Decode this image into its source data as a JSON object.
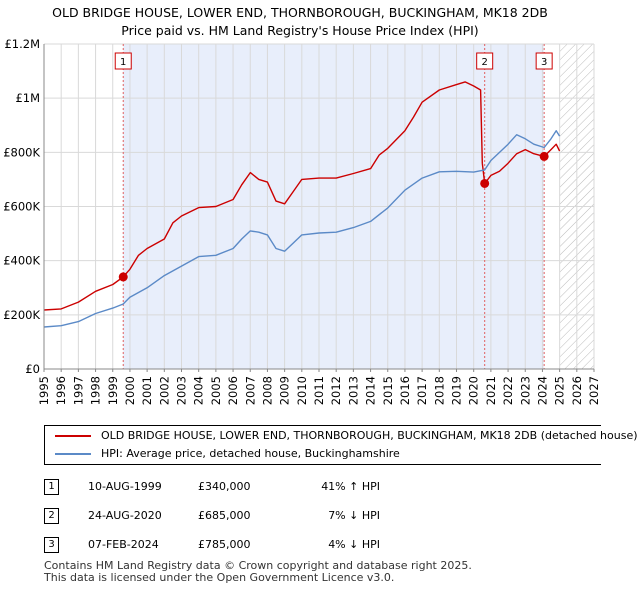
{
  "title_line1": "OLD BRIDGE HOUSE, LOWER END, THORNBOROUGH, BUCKINGHAM, MK18 2DB",
  "title_line2": "Price paid vs. HM Land Registry's House Price Index (HPI)",
  "colors": {
    "property": "#cc0000",
    "hpi": "#5b8ac7",
    "shade": "#e8eefb",
    "marker_line": "#e06060"
  },
  "chart_data": {
    "type": "line",
    "x_axis": {
      "min": 1995,
      "max": 2027,
      "ticks": [
        "1995",
        "1996",
        "1997",
        "1998",
        "1999",
        "2000",
        "2001",
        "2002",
        "2003",
        "2004",
        "2005",
        "2006",
        "2007",
        "2008",
        "2009",
        "2010",
        "2011",
        "2012",
        "2013",
        "2014",
        "2015",
        "2016",
        "2017",
        "2018",
        "2019",
        "2020",
        "2021",
        "2022",
        "2023",
        "2024",
        "2025",
        "2026",
        "2027"
      ]
    },
    "y_axis": {
      "min": 0,
      "max": 1200000,
      "ticks": [
        {
          "value": 0,
          "label": "£0"
        },
        {
          "value": 200000,
          "label": "£200K"
        },
        {
          "value": 400000,
          "label": "£400K"
        },
        {
          "value": 600000,
          "label": "£600K"
        },
        {
          "value": 800000,
          "label": "£800K"
        },
        {
          "value": 1000000,
          "label": "£1M"
        },
        {
          "value": 1200000,
          "label": "£1.2M"
        }
      ]
    },
    "shaded_range": [
      1999.61,
      2024.1
    ],
    "future_hatch_from": 2025.0,
    "series": [
      {
        "name": "OLD BRIDGE HOUSE, LOWER END, THORNBOROUGH, BUCKINGHAM, MK18 2DB (detached house)",
        "color": "#cc0000",
        "points": [
          [
            1995.0,
            218000
          ],
          [
            1996.0,
            222000
          ],
          [
            1997.0,
            247000
          ],
          [
            1998.0,
            287000
          ],
          [
            1999.0,
            312000
          ],
          [
            1999.61,
            340000
          ],
          [
            2000.0,
            368000
          ],
          [
            2000.5,
            420000
          ],
          [
            2001.0,
            445000
          ],
          [
            2002.0,
            480000
          ],
          [
            2002.5,
            540000
          ],
          [
            2003.0,
            565000
          ],
          [
            2004.0,
            596000
          ],
          [
            2005.0,
            600000
          ],
          [
            2006.0,
            626000
          ],
          [
            2006.5,
            680000
          ],
          [
            2007.0,
            725000
          ],
          [
            2007.5,
            700000
          ],
          [
            2008.0,
            690000
          ],
          [
            2008.5,
            620000
          ],
          [
            2009.0,
            610000
          ],
          [
            2009.5,
            655000
          ],
          [
            2010.0,
            700000
          ],
          [
            2011.0,
            705000
          ],
          [
            2012.0,
            705000
          ],
          [
            2013.0,
            722000
          ],
          [
            2014.0,
            740000
          ],
          [
            2014.5,
            790000
          ],
          [
            2015.0,
            815000
          ],
          [
            2016.0,
            880000
          ],
          [
            2016.5,
            930000
          ],
          [
            2017.0,
            985000
          ],
          [
            2018.0,
            1030000
          ],
          [
            2019.0,
            1050000
          ],
          [
            2019.5,
            1060000
          ],
          [
            2020.0,
            1045000
          ],
          [
            2020.4,
            1030000
          ],
          [
            2020.5,
            760000
          ],
          [
            2020.64,
            685000
          ],
          [
            2021.0,
            715000
          ],
          [
            2021.5,
            730000
          ],
          [
            2022.0,
            760000
          ],
          [
            2022.5,
            795000
          ],
          [
            2023.0,
            810000
          ],
          [
            2023.5,
            795000
          ],
          [
            2024.1,
            785000
          ],
          [
            2024.5,
            810000
          ],
          [
            2024.8,
            830000
          ],
          [
            2025.0,
            805000
          ]
        ]
      },
      {
        "name": "HPI: Average price, detached house, Buckinghamshire",
        "color": "#5b8ac7",
        "points": [
          [
            1995.0,
            155000
          ],
          [
            1996.0,
            160000
          ],
          [
            1997.0,
            175000
          ],
          [
            1998.0,
            205000
          ],
          [
            1999.0,
            225000
          ],
          [
            1999.61,
            240000
          ],
          [
            2000.0,
            265000
          ],
          [
            2001.0,
            300000
          ],
          [
            2002.0,
            345000
          ],
          [
            2003.0,
            380000
          ],
          [
            2004.0,
            415000
          ],
          [
            2005.0,
            420000
          ],
          [
            2006.0,
            445000
          ],
          [
            2006.5,
            480000
          ],
          [
            2007.0,
            510000
          ],
          [
            2007.5,
            505000
          ],
          [
            2008.0,
            495000
          ],
          [
            2008.5,
            445000
          ],
          [
            2009.0,
            435000
          ],
          [
            2009.5,
            465000
          ],
          [
            2010.0,
            495000
          ],
          [
            2011.0,
            502000
          ],
          [
            2012.0,
            505000
          ],
          [
            2013.0,
            522000
          ],
          [
            2014.0,
            545000
          ],
          [
            2015.0,
            595000
          ],
          [
            2016.0,
            660000
          ],
          [
            2017.0,
            705000
          ],
          [
            2018.0,
            728000
          ],
          [
            2019.0,
            730000
          ],
          [
            2020.0,
            727000
          ],
          [
            2020.64,
            735000
          ],
          [
            2021.0,
            770000
          ],
          [
            2022.0,
            830000
          ],
          [
            2022.5,
            865000
          ],
          [
            2023.0,
            850000
          ],
          [
            2023.5,
            830000
          ],
          [
            2024.1,
            818000
          ],
          [
            2024.5,
            850000
          ],
          [
            2024.8,
            880000
          ],
          [
            2025.0,
            860000
          ]
        ]
      }
    ],
    "sales": [
      {
        "n": "1",
        "x": 1999.61,
        "price": 340000
      },
      {
        "n": "2",
        "x": 2020.64,
        "price": 685000
      },
      {
        "n": "3",
        "x": 2024.1,
        "price": 785000
      }
    ]
  },
  "legend": {
    "property": "OLD BRIDGE HOUSE, LOWER END, THORNBOROUGH, BUCKINGHAM, MK18 2DB (detached house)",
    "hpi": "HPI: Average price, detached house, Buckinghamshire"
  },
  "sales_table": [
    {
      "n": "1",
      "date": "10-AUG-1999",
      "price": "£340,000",
      "hpi": "41% ↑ HPI"
    },
    {
      "n": "2",
      "date": "24-AUG-2020",
      "price": "£685,000",
      "hpi": "7% ↓ HPI"
    },
    {
      "n": "3",
      "date": "07-FEB-2024",
      "price": "£785,000",
      "hpi": "4% ↓ HPI"
    }
  ],
  "footer_line1": "Contains HM Land Registry data © Crown copyright and database right 2025.",
  "footer_line2": "This data is licensed under the Open Government Licence v3.0."
}
